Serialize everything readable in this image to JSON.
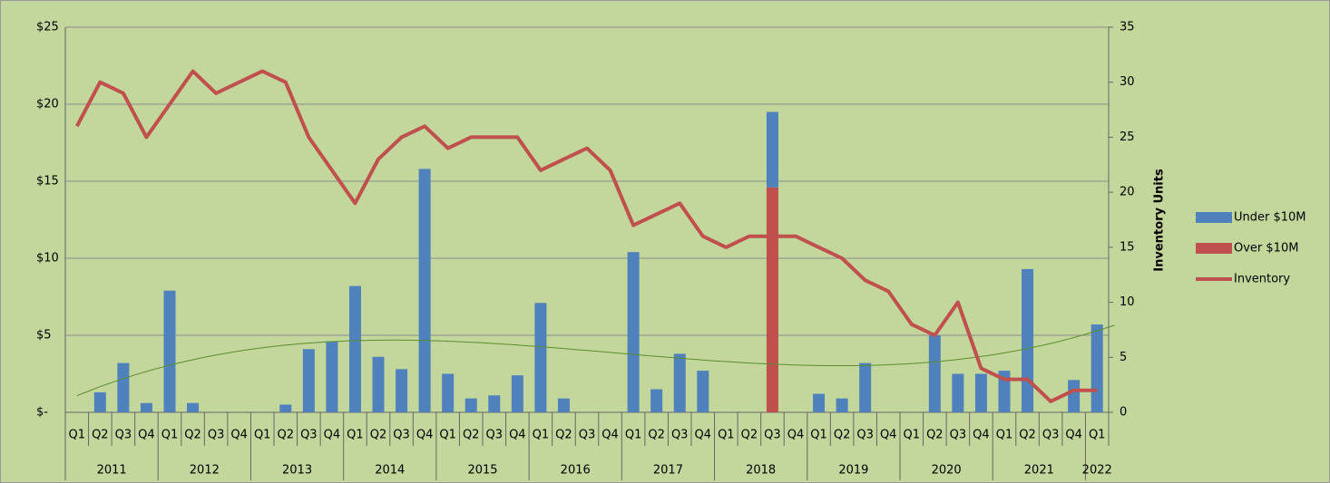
{
  "chart_data": {
    "type": "bar",
    "y2_label": "Inventory Units",
    "categories": [
      "Q1",
      "Q2",
      "Q3",
      "Q4",
      "Q1",
      "Q2",
      "Q3",
      "Q4",
      "Q1",
      "Q2",
      "Q3",
      "Q4",
      "Q1",
      "Q2",
      "Q3",
      "Q4",
      "Q1",
      "Q2",
      "Q3",
      "Q4",
      "Q1",
      "Q2",
      "Q3",
      "Q4",
      "Q1",
      "Q2",
      "Q3",
      "Q4",
      "Q1",
      "Q2",
      "Q3",
      "Q4",
      "Q1",
      "Q2",
      "Q3",
      "Q4",
      "Q1",
      "Q2",
      "Q3",
      "Q4",
      "Q1",
      "Q2",
      "Q3",
      "Q4",
      "Q1"
    ],
    "category_groups": [
      {
        "label": "2011",
        "size": 4
      },
      {
        "label": "2012",
        "size": 4
      },
      {
        "label": "2013",
        "size": 4
      },
      {
        "label": "2014",
        "size": 4
      },
      {
        "label": "2015",
        "size": 4
      },
      {
        "label": "2016",
        "size": 4
      },
      {
        "label": "2017",
        "size": 4
      },
      {
        "label": "2018",
        "size": 4
      },
      {
        "label": "2019",
        "size": 4
      },
      {
        "label": "2020",
        "size": 4
      },
      {
        "label": "2021",
        "size": 4
      },
      {
        "label": "2022",
        "size": 1
      }
    ],
    "series": [
      {
        "name": "Under $10M",
        "type": "bar",
        "color": "#4f81bd",
        "values": [
          null,
          1.3,
          3.2,
          0.6,
          7.9,
          0.6,
          null,
          null,
          null,
          0.5,
          4.1,
          4.6,
          8.2,
          3.6,
          2.8,
          15.8,
          2.5,
          0.9,
          1.1,
          2.4,
          7.1,
          0.9,
          null,
          null,
          10.4,
          1.5,
          3.8,
          2.7,
          null,
          null,
          4.9,
          null,
          1.2,
          0.9,
          3.2,
          null,
          null,
          5.0,
          2.5,
          2.5,
          2.7,
          9.3,
          null,
          2.1,
          5.7
        ]
      },
      {
        "name": "Over $10M",
        "type": "bar",
        "color": "#c0504d",
        "values": [
          null,
          null,
          null,
          null,
          null,
          null,
          null,
          null,
          null,
          null,
          null,
          null,
          null,
          null,
          null,
          null,
          null,
          null,
          null,
          null,
          null,
          null,
          null,
          null,
          null,
          null,
          null,
          null,
          null,
          null,
          14.6,
          null,
          null,
          null,
          null,
          null,
          null,
          null,
          null,
          null,
          null,
          null,
          null,
          null,
          null
        ]
      },
      {
        "name": "Inventory",
        "type": "line",
        "axis": "y2",
        "color": "#c0504d",
        "values": [
          26,
          30,
          29,
          25,
          28,
          31,
          29,
          30,
          31,
          30,
          25,
          22,
          19,
          23,
          25,
          26,
          24,
          25,
          25,
          25,
          22,
          23,
          24,
          22,
          17,
          18,
          19,
          16,
          15,
          16,
          16,
          16,
          15,
          14,
          12,
          11,
          8,
          7,
          10,
          4,
          3,
          3,
          1,
          2,
          2
        ]
      }
    ],
    "trendline": {
      "series": 0,
      "type": "polynomial",
      "order": 3,
      "color": "#5a8f2e"
    },
    "ylim": [
      0,
      25
    ],
    "yticks": [
      {
        "value": 0,
        "label": "$-"
      },
      {
        "value": 5,
        "label": "$5"
      },
      {
        "value": 10,
        "label": "$10"
      },
      {
        "value": 15,
        "label": "$15"
      },
      {
        "value": 20,
        "label": "$20"
      },
      {
        "value": 25,
        "label": "$25"
      }
    ],
    "y2lim": [
      0,
      35
    ],
    "y2ticks": [
      0,
      5,
      10,
      15,
      20,
      25,
      30,
      35
    ],
    "grid": true,
    "legend": "right",
    "background": "#c3d69b"
  }
}
